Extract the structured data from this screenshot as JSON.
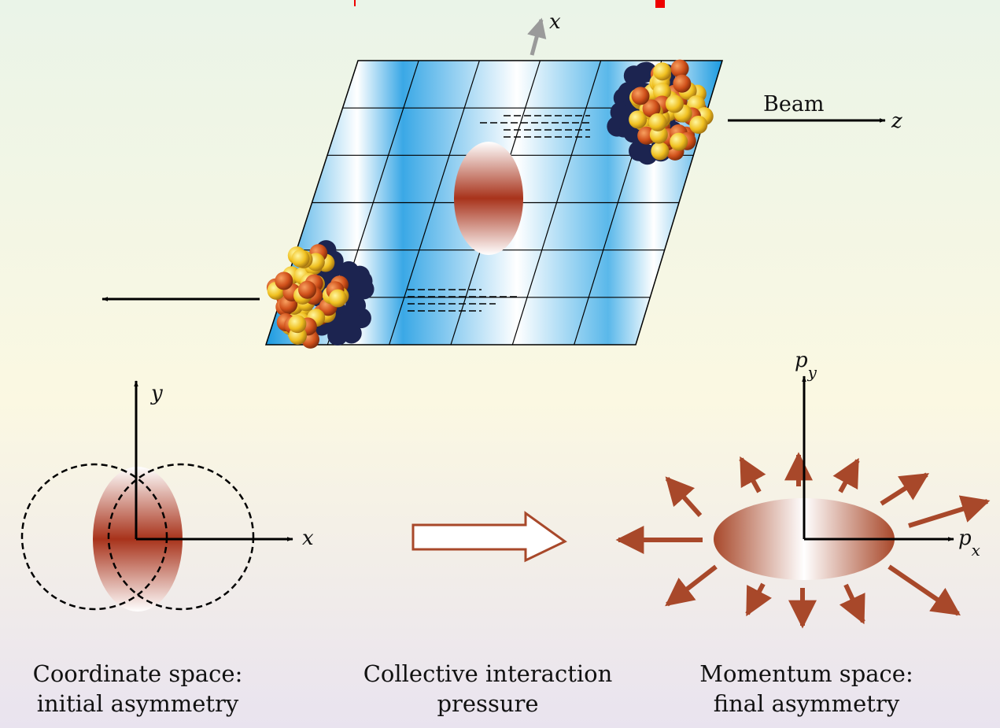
{
  "labels": {
    "top_x": "x",
    "beam": "Beam",
    "z": "z",
    "y": "y",
    "x": "x",
    "py": {
      "base": "p",
      "sub": "y"
    },
    "px": {
      "base": "p",
      "sub": "x"
    }
  },
  "captions": [
    {
      "lines": [
        "Coordinate space:",
        "initial asymmetry"
      ]
    },
    {
      "lines": [
        "Collective interaction",
        "pressure"
      ]
    },
    {
      "lines": [
        "Momentum space:",
        "final asymmetry"
      ]
    }
  ]
}
